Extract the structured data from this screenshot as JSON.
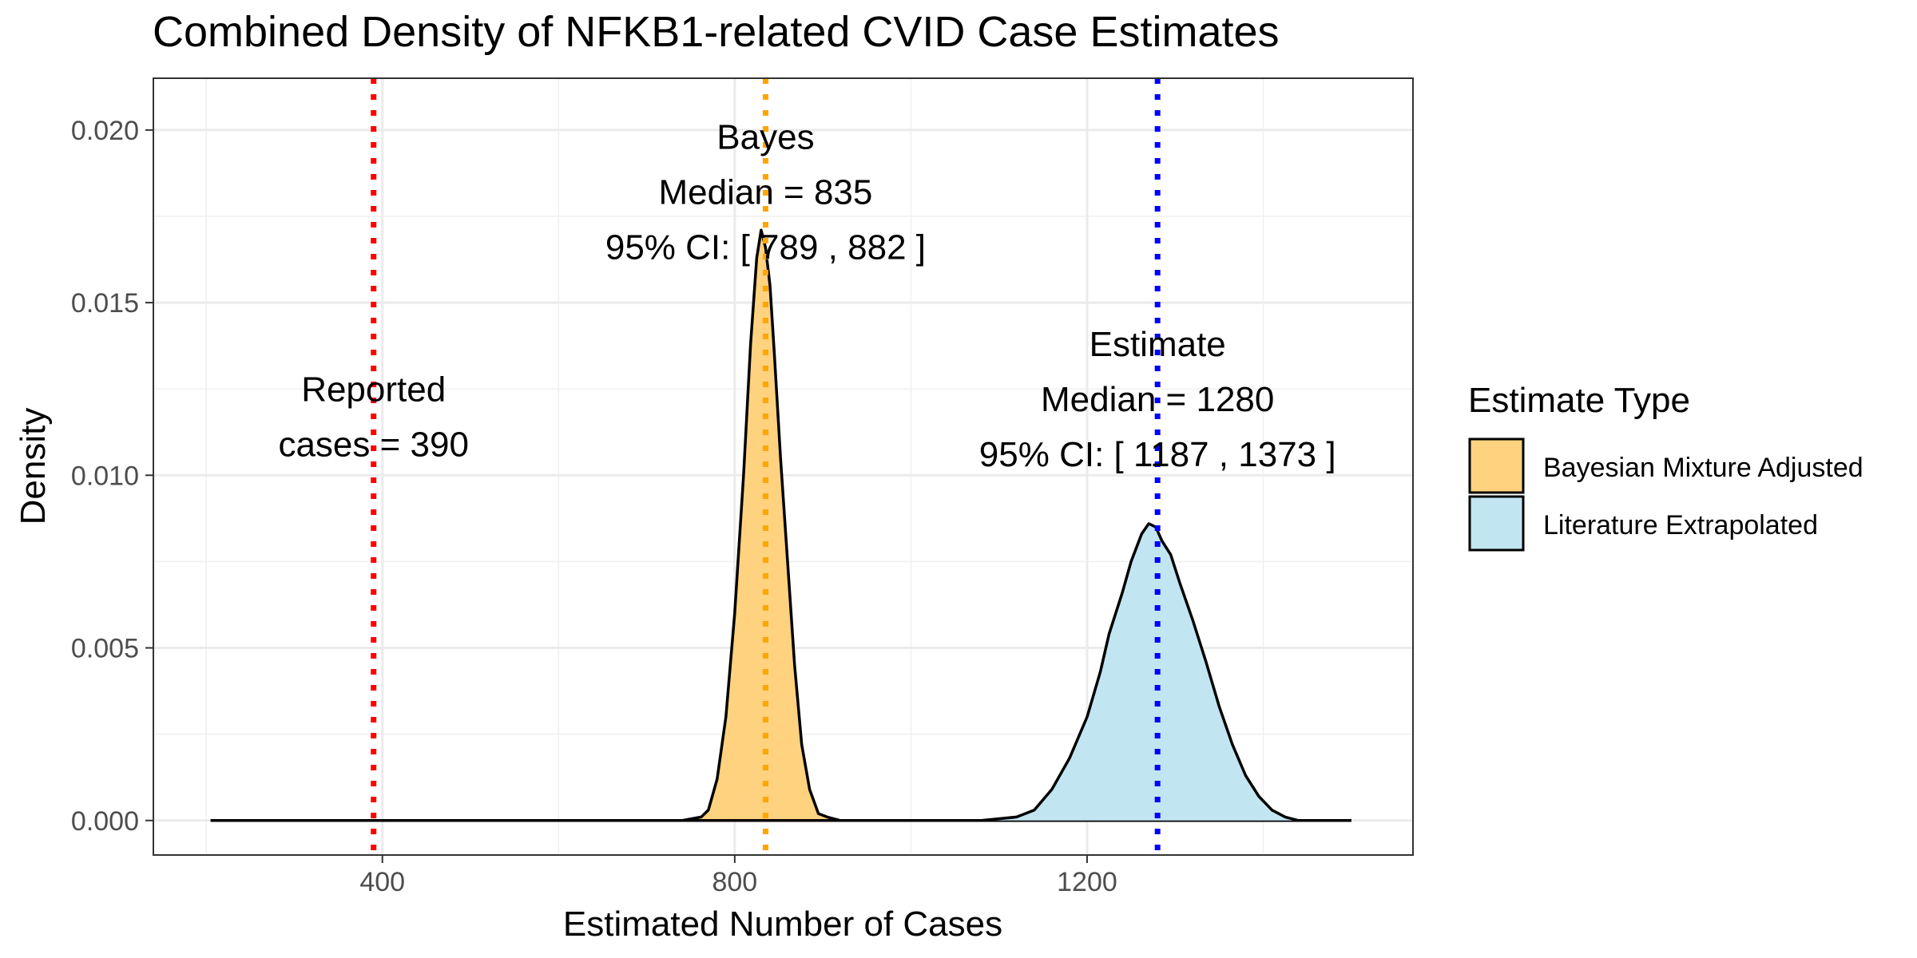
{
  "chart_data": {
    "type": "area",
    "title": "Combined Density of NFKB1-related CVID Case Estimates",
    "xlabel": "Estimated Number of Cases",
    "ylabel": "Density",
    "xlim": [
      140,
      1570
    ],
    "ylim": [
      -0.001,
      0.0215
    ],
    "x_ticks": [
      400,
      800,
      1200
    ],
    "y_ticks": [
      0,
      0.005,
      0.01,
      0.015,
      0.02
    ],
    "y_tick_labels": [
      "0.000",
      "0.005",
      "0.010",
      "0.015",
      "0.020"
    ],
    "x_tick_labels": [
      "400",
      "800",
      "1200"
    ],
    "grid": true,
    "legend": {
      "title": "Estimate Type",
      "position": "right",
      "entries": [
        {
          "label": "Bayesian Mixture Adjusted",
          "color": "#FED27F"
        },
        {
          "label": "Literature Extrapolated",
          "color": "#C2E5F2"
        }
      ]
    },
    "series": [
      {
        "name": "Bayesian Mixture Adjusted",
        "fill": "#FED27F",
        "x": [
          205,
          740,
          762,
          770,
          780,
          790,
          800,
          810,
          818,
          825,
          830,
          835,
          840,
          845,
          852,
          860,
          868,
          876,
          885,
          895,
          905,
          920,
          940,
          1500
        ],
        "y": [
          0,
          0,
          0.0001,
          0.0003,
          0.0012,
          0.003,
          0.006,
          0.01,
          0.0138,
          0.0163,
          0.0171,
          0.0166,
          0.0155,
          0.0135,
          0.0105,
          0.0075,
          0.0045,
          0.0022,
          0.0009,
          0.0002,
          0.0001,
          0,
          0,
          0
        ]
      },
      {
        "name": "Literature Extrapolated",
        "fill": "#C2E5F2",
        "x": [
          205,
          1080,
          1120,
          1140,
          1160,
          1180,
          1200,
          1215,
          1225,
          1240,
          1250,
          1262,
          1270,
          1278,
          1285,
          1295,
          1305,
          1320,
          1335,
          1350,
          1365,
          1380,
          1395,
          1410,
          1425,
          1440,
          1460,
          1500
        ],
        "y": [
          0,
          0,
          0.0001,
          0.0003,
          0.0009,
          0.0018,
          0.003,
          0.0043,
          0.0054,
          0.0066,
          0.0075,
          0.0083,
          0.0086,
          0.0085,
          0.0081,
          0.0077,
          0.0069,
          0.0058,
          0.0046,
          0.0033,
          0.0022,
          0.0013,
          0.0007,
          0.0003,
          0.0001,
          0,
          0,
          0
        ]
      }
    ],
    "reference_lines": [
      {
        "x": 390,
        "color": "#FF0000",
        "style": "dotted"
      },
      {
        "x": 835,
        "color": "#FFA500",
        "style": "dotted"
      },
      {
        "x": 1280,
        "color": "#0000FF",
        "style": "dotted"
      }
    ],
    "annotations": [
      {
        "x": 390,
        "y": 0.0117,
        "lines": [
          "Reported",
          "cases = 390"
        ]
      },
      {
        "x": 835,
        "y": 0.0182,
        "lines": [
          "Bayes",
          "Median = 835",
          "95% CI: [ 789 , 882 ]"
        ]
      },
      {
        "x": 1280,
        "y": 0.0122,
        "lines": [
          "Estimate",
          "Median = 1280",
          "95% CI: [ 1187 , 1373 ]"
        ]
      }
    ]
  }
}
